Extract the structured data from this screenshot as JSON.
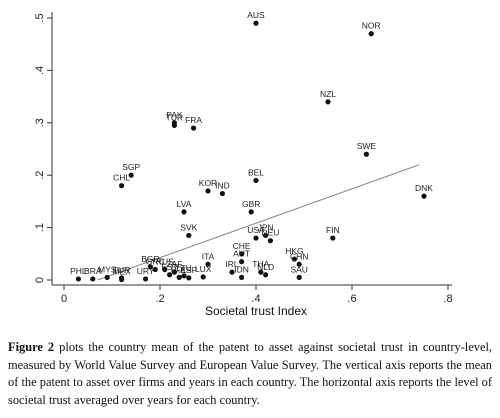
{
  "chart_data": {
    "type": "scatter",
    "title": "",
    "xlabel": "Societal trust Index",
    "ylabel": "",
    "xlim": [
      0,
      0.8
    ],
    "ylim": [
      0,
      0.5
    ],
    "x_ticks": [
      "0",
      ".2",
      ".4",
      ".6",
      ".8"
    ],
    "y_ticks": [
      "0",
      ".1",
      ".2",
      ".3",
      ".4",
      ".5"
    ],
    "grid": false,
    "legend": "none",
    "point_color": "#111111",
    "line_color": "#888888",
    "fit_line": {
      "x": [
        0.07,
        0.74
      ],
      "y": [
        0.0,
        0.22
      ]
    },
    "points": [
      {
        "label": "AUS",
        "x": 0.4,
        "y": 0.49
      },
      {
        "label": "NOR",
        "x": 0.64,
        "y": 0.47
      },
      {
        "label": "NZL",
        "x": 0.55,
        "y": 0.34
      },
      {
        "label": "PAK",
        "x": 0.23,
        "y": 0.3
      },
      {
        "label": "TUR",
        "x": 0.23,
        "y": 0.295
      },
      {
        "label": "FRA",
        "x": 0.27,
        "y": 0.29
      },
      {
        "label": "SWE",
        "x": 0.63,
        "y": 0.24
      },
      {
        "label": "SGP",
        "x": 0.14,
        "y": 0.2
      },
      {
        "label": "CHL",
        "x": 0.12,
        "y": 0.18
      },
      {
        "label": "BEL",
        "x": 0.4,
        "y": 0.19
      },
      {
        "label": "KOR",
        "x": 0.3,
        "y": 0.17
      },
      {
        "label": "IND",
        "x": 0.33,
        "y": 0.165
      },
      {
        "label": "DNK",
        "x": 0.75,
        "y": 0.16
      },
      {
        "label": "GBR",
        "x": 0.39,
        "y": 0.13
      },
      {
        "label": "LVA",
        "x": 0.25,
        "y": 0.13
      },
      {
        "label": "SVK",
        "x": 0.26,
        "y": 0.085
      },
      {
        "label": "USA",
        "x": 0.4,
        "y": 0.08
      },
      {
        "label": "JPN",
        "x": 0.42,
        "y": 0.085
      },
      {
        "label": "DEU",
        "x": 0.43,
        "y": 0.075
      },
      {
        "label": "FIN",
        "x": 0.56,
        "y": 0.08
      },
      {
        "label": "HKG",
        "x": 0.48,
        "y": 0.04
      },
      {
        "label": "CHN",
        "x": 0.49,
        "y": 0.03
      },
      {
        "label": "CHE",
        "x": 0.37,
        "y": 0.05
      },
      {
        "label": "AUT",
        "x": 0.37,
        "y": 0.035
      },
      {
        "label": "ITA",
        "x": 0.3,
        "y": 0.03
      },
      {
        "label": "IRL",
        "x": 0.35,
        "y": 0.015
      },
      {
        "label": "IDN",
        "x": 0.37,
        "y": 0.005
      },
      {
        "label": "THA",
        "x": 0.41,
        "y": 0.015
      },
      {
        "label": "NLD",
        "x": 0.42,
        "y": 0.01
      },
      {
        "label": "SAU",
        "x": 0.49,
        "y": 0.005
      },
      {
        "label": "BGR",
        "x": 0.18,
        "y": 0.025
      },
      {
        "label": "GRC",
        "x": 0.19,
        "y": 0.02
      },
      {
        "label": "RUS",
        "x": 0.21,
        "y": 0.02
      },
      {
        "label": "ZAF",
        "x": 0.23,
        "y": 0.015
      },
      {
        "label": "EST",
        "x": 0.22,
        "y": 0.01
      },
      {
        "label": "LTU",
        "x": 0.25,
        "y": 0.008
      },
      {
        "label": "POL",
        "x": 0.24,
        "y": 0.005
      },
      {
        "label": "ESP",
        "x": 0.26,
        "y": 0.004
      },
      {
        "label": "LUX",
        "x": 0.29,
        "y": 0.006
      },
      {
        "label": "PHL",
        "x": 0.03,
        "y": 0.002
      },
      {
        "label": "BRA",
        "x": 0.06,
        "y": 0.002
      },
      {
        "label": "MYS",
        "x": 0.09,
        "y": 0.005
      },
      {
        "label": "TUR",
        "x": 0.12,
        "y": 0.004
      },
      {
        "label": "MEX",
        "x": 0.12,
        "y": 0.001
      },
      {
        "label": "URY",
        "x": 0.17,
        "y": 0.002
      }
    ]
  },
  "caption": {
    "lead": "Figure 2",
    "text": " plots the country mean of the patent to asset against societal trust in country-level, measured by World Value Survey and European Value Survey. The vertical axis reports the mean of the patent to asset over firms and years in each country. The horizontal axis reports the level of societal trust averaged over years for each country."
  }
}
